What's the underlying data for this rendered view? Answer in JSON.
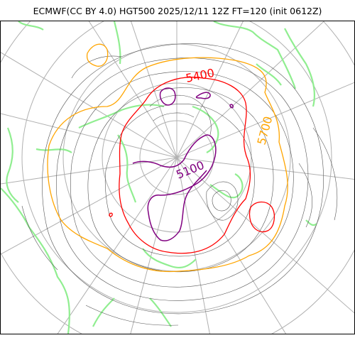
{
  "title": "ECMWF(CC BY 4.0) HGT500 2025/12/11 12Z FT=120 (init 0612Z)",
  "map": {
    "projection": "north-polar-stereographic",
    "field": "500 hPa geopotential height",
    "highlighted_contours": [
      {
        "value": 5100,
        "label": "5100",
        "color": "#800080"
      },
      {
        "value": 5400,
        "label": "5400",
        "color": "#ff0000"
      },
      {
        "value": 5700,
        "label": "5700",
        "color": "#ffa500"
      }
    ],
    "coastline_color": "#90ee90",
    "graticule_color": "#b0b0b0",
    "contour_color": "#555555"
  }
}
